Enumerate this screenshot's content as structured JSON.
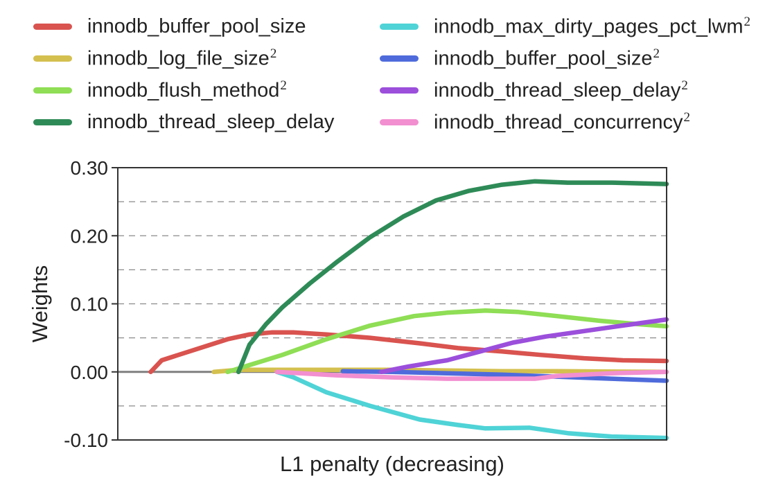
{
  "legend": {
    "left": [
      {
        "label": "innodb_buffer_pool_size",
        "sup": "",
        "color": "#d9534f"
      },
      {
        "label": "innodb_log_file_size",
        "sup": "2",
        "color": "#d4c04f"
      },
      {
        "label": "innodb_flush_method",
        "sup": "2",
        "color": "#8fde55"
      },
      {
        "label": "innodb_thread_sleep_delay",
        "sup": "",
        "color": "#2e8b57"
      }
    ],
    "right": [
      {
        "label": "innodb_max_dirty_pages_pct_lwm",
        "sup": "2",
        "color": "#4fd3d6"
      },
      {
        "label": "innodb_buffer_pool_size",
        "sup": "2",
        "color": "#4f6bdb"
      },
      {
        "label": "innodb_thread_sleep_delay",
        "sup": "2",
        "color": "#9b4fdb"
      },
      {
        "label": "innodb_thread_concurrency",
        "sup": "2",
        "color": "#f28fd0"
      }
    ]
  },
  "chart_data": {
    "type": "line",
    "xlabel": "L1 penalty (decreasing)",
    "ylabel": "Weights",
    "ylim": [
      -0.1,
      0.3
    ],
    "xlim": [
      0,
      100
    ],
    "yticks": [
      "0.30",
      "0.20",
      "0.10",
      "0.00",
      "-0.10"
    ],
    "ytick_values": [
      0.3,
      0.2,
      0.1,
      0.0,
      -0.1
    ],
    "grid_minor_values": [
      0.25,
      0.15,
      0.05,
      -0.05
    ],
    "grid": "dashed horizontal",
    "legend_position": "top",
    "zero_line_color": "#7f7f7f",
    "series": [
      {
        "color": "#4fd3d6",
        "points": [
          [
            29,
            0.0
          ],
          [
            32,
            -0.008
          ],
          [
            38,
            -0.03
          ],
          [
            46,
            -0.05
          ],
          [
            55,
            -0.07
          ],
          [
            62,
            -0.078
          ],
          [
            67,
            -0.083
          ],
          [
            75,
            -0.082
          ],
          [
            82,
            -0.09
          ],
          [
            90,
            -0.095
          ],
          [
            100,
            -0.097
          ]
        ]
      },
      {
        "color": "#d4c04f",
        "points": [
          [
            17.5,
            0.0
          ],
          [
            22,
            0.003
          ],
          [
            35,
            0.003
          ],
          [
            50,
            0.003
          ],
          [
            60,
            0.002
          ],
          [
            70,
            0.001
          ],
          [
            80,
            0.001
          ],
          [
            100,
            0.0
          ]
        ]
      },
      {
        "color": "#4f6bdb",
        "points": [
          [
            41,
            0.001
          ],
          [
            50,
            0.0
          ],
          [
            60,
            -0.002
          ],
          [
            70,
            -0.004
          ],
          [
            80,
            -0.007
          ],
          [
            90,
            -0.01
          ],
          [
            100,
            -0.013
          ]
        ]
      },
      {
        "color": "#f28fd0",
        "points": [
          [
            29,
            0.0
          ],
          [
            40,
            -0.005
          ],
          [
            50,
            -0.008
          ],
          [
            60,
            -0.01
          ],
          [
            70,
            -0.01
          ],
          [
            76,
            -0.01
          ],
          [
            80,
            -0.006
          ],
          [
            90,
            -0.002
          ],
          [
            100,
            0.0
          ]
        ]
      },
      {
        "color": "#d9534f",
        "points": [
          [
            6,
            0.0
          ],
          [
            8,
            0.017
          ],
          [
            13,
            0.03
          ],
          [
            20,
            0.048
          ],
          [
            24,
            0.055
          ],
          [
            28,
            0.058
          ],
          [
            32,
            0.058
          ],
          [
            38,
            0.055
          ],
          [
            46,
            0.05
          ],
          [
            55,
            0.042
          ],
          [
            62,
            0.035
          ],
          [
            70,
            0.03
          ],
          [
            77,
            0.025
          ],
          [
            85,
            0.02
          ],
          [
            92,
            0.017
          ],
          [
            100,
            0.016
          ]
        ]
      },
      {
        "color": "#8fde55",
        "points": [
          [
            20,
            0.0
          ],
          [
            24,
            0.01
          ],
          [
            30,
            0.025
          ],
          [
            38,
            0.048
          ],
          [
            46,
            0.068
          ],
          [
            54,
            0.082
          ],
          [
            60,
            0.087
          ],
          [
            67,
            0.09
          ],
          [
            73,
            0.088
          ],
          [
            80,
            0.082
          ],
          [
            88,
            0.075
          ],
          [
            95,
            0.07
          ],
          [
            100,
            0.067
          ]
        ]
      },
      {
        "color": "#9b4fdb",
        "points": [
          [
            48,
            0.0
          ],
          [
            53,
            0.008
          ],
          [
            60,
            0.017
          ],
          [
            66,
            0.03
          ],
          [
            72,
            0.043
          ],
          [
            78,
            0.052
          ],
          [
            85,
            0.06
          ],
          [
            92,
            0.068
          ],
          [
            100,
            0.077
          ]
        ]
      },
      {
        "color": "#2e8b57",
        "points": [
          [
            22,
            0.0
          ],
          [
            24,
            0.04
          ],
          [
            27,
            0.07
          ],
          [
            30,
            0.095
          ],
          [
            35,
            0.13
          ],
          [
            40,
            0.162
          ],
          [
            46,
            0.198
          ],
          [
            52,
            0.228
          ],
          [
            58,
            0.252
          ],
          [
            64,
            0.266
          ],
          [
            70,
            0.275
          ],
          [
            76,
            0.28
          ],
          [
            82,
            0.278
          ],
          [
            90,
            0.278
          ],
          [
            100,
            0.276
          ]
        ]
      }
    ]
  }
}
